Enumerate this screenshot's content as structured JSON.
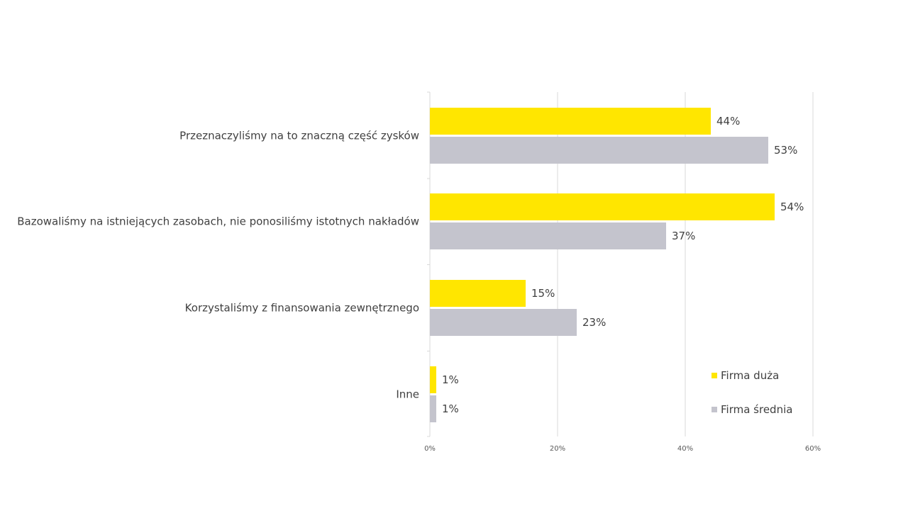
{
  "chart_data": {
    "type": "bar",
    "orientation": "horizontal",
    "categories": [
      "Przeznaczyliśmy na to znaczną część zysków",
      "Bazowaliśmy na istniejących zasobach, nie ponosiliśmy istotnych nakładów",
      "Korzystaliśmy z finansowania zewnętrznego",
      "Inne"
    ],
    "series": [
      {
        "name": "Firma duża",
        "values": [
          44,
          54,
          15,
          1
        ],
        "labels": [
          "44%",
          "54%",
          "15%",
          "1%"
        ],
        "color": "#FFE600"
      },
      {
        "name": "Firma średnia",
        "values": [
          53,
          37,
          23,
          1
        ],
        "labels": [
          "53%",
          "37%",
          "23%",
          "1%"
        ],
        "color": "#C4C4CD"
      }
    ],
    "xlim": [
      0,
      60
    ],
    "xticks": [
      0,
      20,
      40,
      60
    ],
    "xtick_labels": [
      "0%",
      "20%",
      "40%",
      "60%"
    ],
    "grid": true,
    "gridline_color": "#D9D9D9",
    "legend_position": "bottom-right"
  }
}
